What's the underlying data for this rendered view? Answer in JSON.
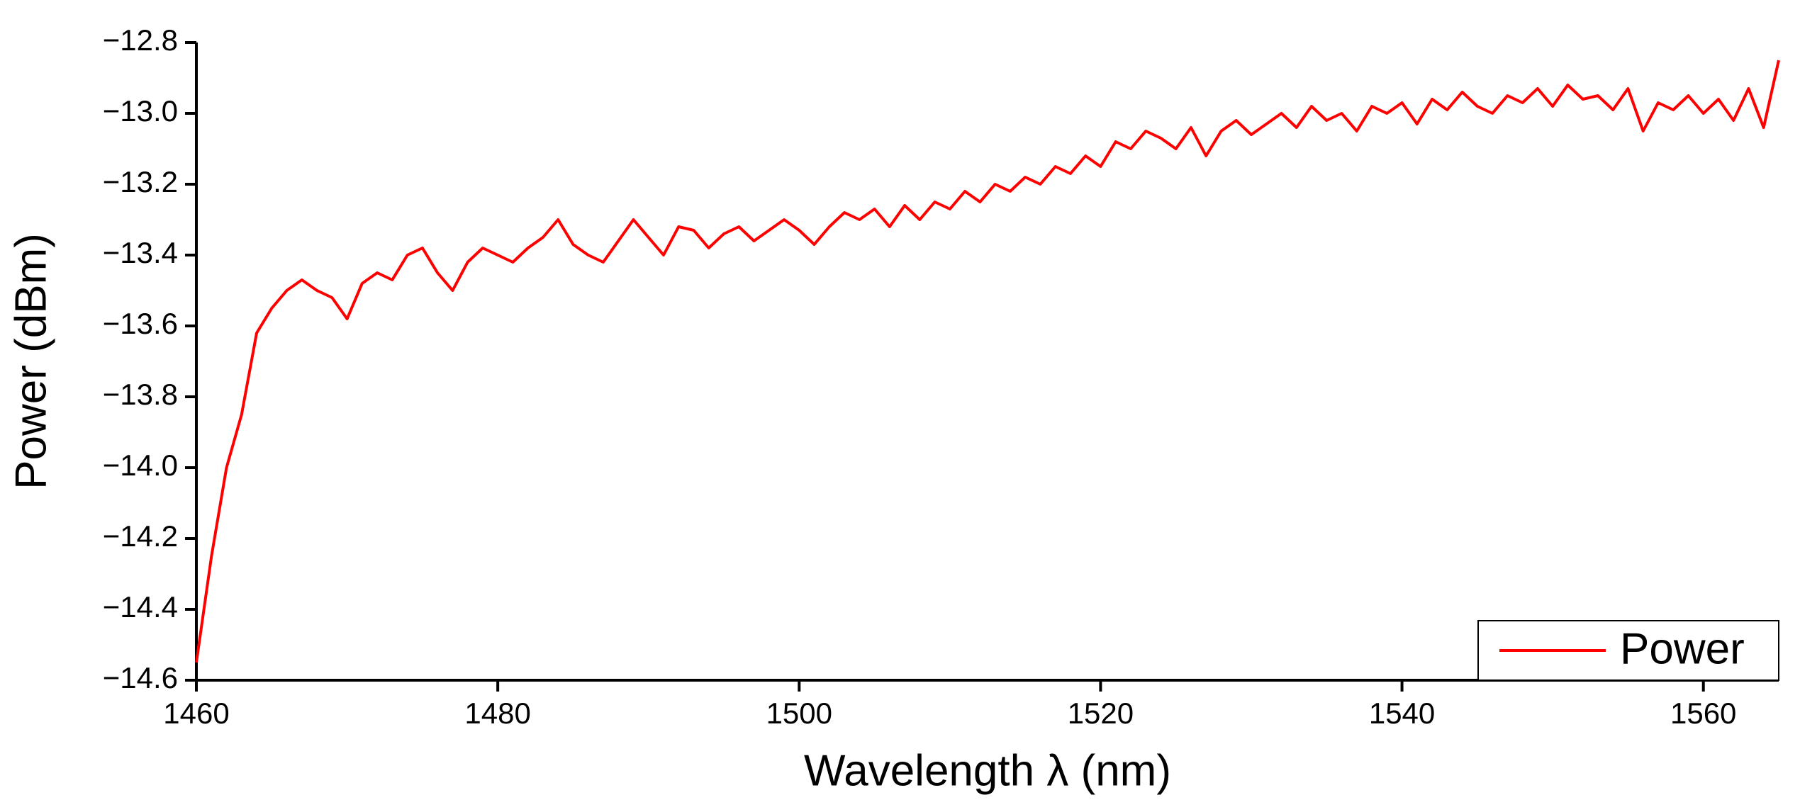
{
  "chart_data": {
    "type": "line",
    "x_label": "Wavelength λ (nm)",
    "y_label": "Power (dBm)",
    "x": [
      1460,
      1461,
      1462,
      1463,
      1464,
      1465,
      1466,
      1467,
      1468,
      1469,
      1470,
      1471,
      1472,
      1473,
      1474,
      1475,
      1476,
      1477,
      1478,
      1479,
      1480,
      1481,
      1482,
      1483,
      1484,
      1485,
      1486,
      1487,
      1488,
      1489,
      1490,
      1491,
      1492,
      1493,
      1494,
      1495,
      1496,
      1497,
      1498,
      1499,
      1500,
      1501,
      1502,
      1503,
      1504,
      1505,
      1506,
      1507,
      1508,
      1509,
      1510,
      1511,
      1512,
      1513,
      1514,
      1515,
      1516,
      1517,
      1518,
      1519,
      1520,
      1521,
      1522,
      1523,
      1524,
      1525,
      1526,
      1527,
      1528,
      1529,
      1530,
      1531,
      1532,
      1533,
      1534,
      1535,
      1536,
      1537,
      1538,
      1539,
      1540,
      1541,
      1542,
      1543,
      1544,
      1545,
      1546,
      1547,
      1548,
      1549,
      1550,
      1551,
      1552,
      1553,
      1554,
      1555,
      1556,
      1557,
      1558,
      1559,
      1560,
      1561,
      1562,
      1563,
      1564,
      1565
    ],
    "series": [
      {
        "name": "Power",
        "color": "#ff0000",
        "values": [
          -14.55,
          -14.25,
          -14.0,
          -13.85,
          -13.62,
          -13.55,
          -13.5,
          -13.47,
          -13.5,
          -13.52,
          -13.58,
          -13.48,
          -13.45,
          -13.47,
          -13.4,
          -13.38,
          -13.45,
          -13.5,
          -13.42,
          -13.38,
          -13.4,
          -13.42,
          -13.38,
          -13.35,
          -13.3,
          -13.37,
          -13.4,
          -13.42,
          -13.36,
          -13.3,
          -13.35,
          -13.4,
          -13.32,
          -13.33,
          -13.38,
          -13.34,
          -13.32,
          -13.36,
          -13.33,
          -13.3,
          -13.33,
          -13.37,
          -13.32,
          -13.28,
          -13.3,
          -13.27,
          -13.32,
          -13.26,
          -13.3,
          -13.25,
          -13.27,
          -13.22,
          -13.25,
          -13.2,
          -13.22,
          -13.18,
          -13.2,
          -13.15,
          -13.17,
          -13.12,
          -13.15,
          -13.08,
          -13.1,
          -13.05,
          -13.07,
          -13.1,
          -13.04,
          -13.12,
          -13.05,
          -13.02,
          -13.06,
          -13.03,
          -13.0,
          -13.04,
          -12.98,
          -13.02,
          -13.0,
          -13.05,
          -12.98,
          -13.0,
          -12.97,
          -13.03,
          -12.96,
          -12.99,
          -12.94,
          -12.98,
          -13.0,
          -12.95,
          -12.97,
          -12.93,
          -12.98,
          -12.92,
          -12.96,
          -12.95,
          -12.99,
          -12.93,
          -13.05,
          -12.97,
          -12.99,
          -12.95,
          -13.0,
          -12.96,
          -13.02,
          -12.93,
          -13.04,
          -12.85
        ]
      }
    ],
    "xlim": [
      1460,
      1565
    ],
    "xticks": [
      1460,
      1480,
      1500,
      1520,
      1540,
      1560
    ],
    "ylim": [
      -14.6,
      -12.8
    ],
    "yticks": [
      {
        "value": -14.6,
        "label": "−14.6"
      },
      {
        "value": -14.4,
        "label": "−14.4"
      },
      {
        "value": -14.2,
        "label": "−14.2"
      },
      {
        "value": -14.0,
        "label": "−14.0"
      },
      {
        "value": -13.8,
        "label": "−13.8"
      },
      {
        "value": -13.6,
        "label": "−13.6"
      },
      {
        "value": -13.4,
        "label": "−13.4"
      },
      {
        "value": -13.2,
        "label": "−13.2"
      },
      {
        "value": -13.0,
        "label": "−13.0"
      },
      {
        "value": -12.8,
        "label": "−12.8"
      }
    ],
    "legend": "bottom-right"
  }
}
